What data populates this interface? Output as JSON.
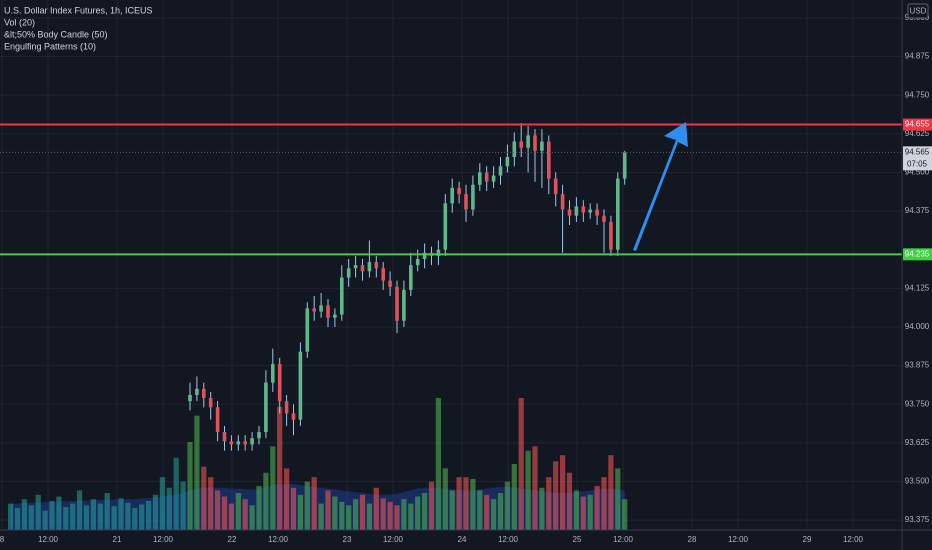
{
  "header": {
    "title": "U.S. Dollar Index Futures, 1h, ICEUS",
    "indicators": [
      "Vol (20)",
      "&lt;50% Body Candle (50)",
      "Engulfing Patterns (10)"
    ],
    "currency": "USD"
  },
  "chart_data": {
    "type": "candlestick",
    "x_labels": [
      "8",
      "12:00",
      "21",
      "12:00",
      "22",
      "12:00",
      "23",
      "12:00",
      "24",
      "12:00",
      "25",
      "12:00",
      "28",
      "12:00",
      "29",
      "12:00"
    ],
    "open": [
      null,
      null,
      null,
      null,
      null,
      null,
      null,
      null,
      null,
      null,
      null,
      null,
      null,
      null,
      null,
      null,
      null,
      null,
      null,
      null,
      null,
      null,
      null,
      null,
      null,
      null,
      93.76,
      93.78,
      93.8,
      93.77,
      93.74,
      93.66,
      93.63,
      93.62,
      93.63,
      93.62,
      93.64,
      93.66,
      93.82,
      93.88,
      93.76,
      93.72,
      93.7,
      93.92,
      94.06,
      94.05,
      94.07,
      94.03,
      94.04,
      94.16,
      94.19,
      94.2,
      94.18,
      94.21,
      94.19,
      94.15,
      94.13,
      94.02,
      94.12,
      94.2,
      94.22,
      94.24,
      94.23,
      94.25,
      94.4,
      94.45,
      94.43,
      94.38,
      94.46,
      94.5,
      94.47,
      94.49,
      94.52,
      94.55,
      94.6,
      94.58,
      94.62,
      94.57,
      94.6,
      94.48,
      94.43,
      94.38,
      94.36,
      94.39,
      94.37,
      94.38,
      94.36,
      94.34,
      94.25,
      94.48
    ],
    "high": [
      null,
      null,
      null,
      null,
      null,
      null,
      null,
      null,
      null,
      null,
      null,
      null,
      null,
      null,
      null,
      null,
      null,
      null,
      null,
      null,
      null,
      null,
      null,
      null,
      null,
      null,
      93.82,
      93.84,
      93.82,
      93.79,
      93.76,
      93.68,
      93.65,
      93.65,
      93.65,
      93.66,
      93.68,
      93.86,
      93.93,
      93.9,
      93.78,
      93.75,
      93.95,
      94.08,
      94.1,
      94.11,
      94.09,
      94.06,
      94.2,
      94.22,
      94.23,
      94.22,
      94.28,
      94.23,
      94.21,
      94.18,
      94.15,
      94.15,
      94.24,
      94.25,
      94.27,
      94.26,
      94.28,
      94.43,
      94.48,
      94.47,
      94.46,
      94.49,
      94.53,
      94.52,
      94.52,
      94.55,
      94.59,
      94.63,
      94.66,
      94.65,
      94.64,
      94.64,
      94.62,
      94.5,
      94.46,
      94.41,
      94.42,
      94.41,
      94.4,
      94.4,
      94.38,
      94.36,
      94.5,
      94.57
    ],
    "low": [
      null,
      null,
      null,
      null,
      null,
      null,
      null,
      null,
      null,
      null,
      null,
      null,
      null,
      null,
      null,
      null,
      null,
      null,
      null,
      null,
      null,
      null,
      null,
      null,
      null,
      null,
      93.73,
      93.76,
      93.74,
      93.7,
      93.63,
      93.6,
      93.6,
      93.6,
      93.6,
      93.6,
      93.62,
      93.64,
      93.79,
      93.72,
      93.68,
      93.65,
      93.68,
      93.9,
      94.02,
      94.03,
      94.0,
      94.0,
      94.02,
      94.13,
      94.16,
      94.15,
      94.16,
      94.16,
      94.12,
      94.1,
      93.98,
      94.0,
      94.1,
      94.18,
      94.19,
      94.2,
      94.2,
      94.23,
      94.37,
      94.4,
      94.34,
      94.36,
      94.44,
      94.44,
      94.45,
      94.46,
      94.5,
      94.52,
      94.55,
      94.5,
      94.47,
      94.45,
      94.43,
      94.39,
      94.24,
      94.33,
      94.34,
      94.34,
      94.35,
      94.33,
      94.24,
      94.23,
      94.23,
      94.46
    ],
    "close": [
      null,
      null,
      null,
      null,
      null,
      null,
      null,
      null,
      null,
      null,
      null,
      null,
      null,
      null,
      null,
      null,
      null,
      null,
      null,
      null,
      null,
      null,
      null,
      null,
      null,
      null,
      93.78,
      93.8,
      93.77,
      93.74,
      93.66,
      93.63,
      93.62,
      93.63,
      93.62,
      93.64,
      93.66,
      93.82,
      93.88,
      93.76,
      93.72,
      93.7,
      93.92,
      94.06,
      94.05,
      94.07,
      94.03,
      94.04,
      94.16,
      94.19,
      94.2,
      94.18,
      94.21,
      94.19,
      94.15,
      94.13,
      94.02,
      94.12,
      94.2,
      94.22,
      94.24,
      94.23,
      94.25,
      94.4,
      94.45,
      94.43,
      94.38,
      94.46,
      94.5,
      94.47,
      94.49,
      94.52,
      94.55,
      94.6,
      94.58,
      94.62,
      94.57,
      94.6,
      94.48,
      94.43,
      94.38,
      94.36,
      94.39,
      94.37,
      94.38,
      94.36,
      94.34,
      94.25,
      94.48,
      94.565
    ],
    "volume": [
      30,
      25,
      35,
      28,
      40,
      22,
      33,
      38,
      26,
      30,
      45,
      28,
      35,
      30,
      42,
      27,
      36,
      31,
      25,
      29,
      33,
      40,
      60,
      48,
      82,
      55,
      100,
      130,
      72,
      60,
      45,
      38,
      30,
      42,
      35,
      28,
      50,
      65,
      95,
      140,
      70,
      48,
      40,
      55,
      60,
      30,
      45,
      38,
      32,
      28,
      35,
      40,
      30,
      48,
      36,
      32,
      28,
      35,
      30,
      38,
      42,
      55,
      150,
      70,
      45,
      60,
      60,
      58,
      45,
      40,
      35,
      42,
      55,
      75,
      150,
      90,
      95,
      48,
      60,
      78,
      85,
      65,
      45,
      38,
      40,
      50,
      60,
      85,
      70,
      35
    ],
    "volume_ma": [
      30,
      30,
      31,
      31,
      31,
      32,
      32,
      32,
      33,
      33,
      33,
      33,
      34,
      34,
      34,
      35,
      35,
      35,
      35,
      36,
      36,
      37,
      38,
      39,
      40,
      42,
      45,
      47,
      48,
      48,
      48,
      48,
      47,
      47,
      46,
      46,
      47,
      49,
      51,
      52,
      52,
      52,
      51,
      50,
      49,
      48,
      47,
      46,
      45,
      44,
      43,
      42,
      41,
      40,
      40,
      40,
      41,
      43,
      45,
      47,
      48,
      48,
      48,
      47,
      46,
      45,
      45,
      45,
      46,
      47,
      48,
      49,
      49,
      48,
      47,
      46,
      45,
      44,
      43,
      42,
      42,
      42,
      43,
      44,
      45,
      46,
      47,
      47,
      46,
      45
    ],
    "ylim": [
      93.343,
      95.058
    ],
    "yticks": [
      {
        "value": 95,
        "label": "95.000"
      },
      {
        "value": 94.875,
        "label": "94.875"
      },
      {
        "value": 94.75,
        "label": "94.750"
      },
      {
        "value": 94.625,
        "label": "94.625"
      },
      {
        "value": 94.5,
        "label": "94.500"
      },
      {
        "value": 94.375,
        "label": "94.375"
      },
      {
        "value": 94.125,
        "label": "94.125"
      },
      {
        "value": 94,
        "label": "94.000"
      },
      {
        "value": 93.875,
        "label": "93.875"
      },
      {
        "value": 93.75,
        "label": "93.750"
      },
      {
        "value": 93.625,
        "label": "93.625"
      },
      {
        "value": 93.5,
        "label": "93.500"
      },
      {
        "value": 93.375,
        "label": "93.375"
      }
    ],
    "grid": true,
    "up_color": "#5fb88a",
    "down_color": "#e0525c",
    "levels": [
      {
        "price": 94.655,
        "color": "#f23645"
      },
      {
        "price": 94.235,
        "color": "#3fd13f"
      }
    ],
    "countdown": "07:05"
  }
}
